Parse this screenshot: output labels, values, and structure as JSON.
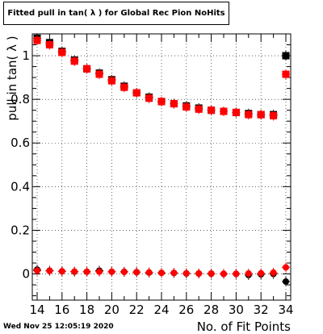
{
  "header": {
    "title": "Fitted pull in tan( λ ) for Global Rec Pion NoHits"
  },
  "footer": {
    "timestamp": "Wed Nov 25 12:05:19 2020"
  },
  "chart_data": {
    "type": "scatter",
    "title": "Fitted pull in tan( λ ) for Global Rec Pion NoHits",
    "xlabel": "No. of Fit Points",
    "ylabel": "pull in tan( λ )",
    "xlim": [
      14,
      34
    ],
    "ylim": [
      -0.12,
      1.1
    ],
    "xticks": [
      14,
      16,
      18,
      20,
      22,
      24,
      26,
      28,
      30,
      32,
      34
    ],
    "xtick_labels": [
      "14",
      "16",
      "18",
      "20",
      "22",
      "24",
      "26",
      "28",
      "30",
      "32",
      "34"
    ],
    "yticks": [
      0,
      0.2,
      0.4,
      0.6,
      0.8,
      1
    ],
    "ytick_labels": [
      "0",
      "0.2",
      "0.4",
      "0.6",
      "0.8",
      "1"
    ],
    "grid": true,
    "series": [
      {
        "marker": "square",
        "color": "#000000",
        "x": [
          14,
          15,
          16,
          17,
          18,
          19,
          20,
          21,
          22,
          23,
          24,
          25,
          26,
          27,
          28,
          29,
          30,
          31,
          32,
          33,
          34
        ],
        "y": [
          1.08,
          1.06,
          1.02,
          0.98,
          0.94,
          0.92,
          0.89,
          0.86,
          0.83,
          0.81,
          0.79,
          0.78,
          0.77,
          0.76,
          0.75,
          0.745,
          0.74,
          0.735,
          0.73,
          0.73,
          1.0
        ]
      },
      {
        "marker": "square",
        "color": "#ff0000",
        "x": [
          14,
          15,
          16,
          17,
          18,
          19,
          20,
          21,
          22,
          23,
          24,
          25,
          26,
          27,
          28,
          29,
          30,
          31,
          32,
          33,
          34
        ],
        "y": [
          1.07,
          1.05,
          1.015,
          0.975,
          0.94,
          0.915,
          0.885,
          0.855,
          0.83,
          0.805,
          0.79,
          0.78,
          0.765,
          0.755,
          0.75,
          0.745,
          0.74,
          0.73,
          0.73,
          0.725,
          0.915
        ]
      },
      {
        "marker": "circle",
        "color": "#000000",
        "x": [
          14,
          15,
          16,
          17,
          18,
          19,
          20,
          21,
          22,
          23,
          24,
          25,
          26,
          27,
          28,
          29,
          30,
          31,
          32,
          33,
          34
        ],
        "y": [
          0.02,
          0.015,
          0.012,
          0.01,
          0.01,
          0.015,
          0.01,
          0.01,
          0.008,
          0.006,
          0.005,
          0.004,
          0.002,
          0.002,
          0.001,
          0.0,
          0.0,
          -0.005,
          -0.002,
          0.0,
          -0.035
        ]
      },
      {
        "marker": "circle",
        "color": "#ff0000",
        "x": [
          14,
          15,
          16,
          17,
          18,
          19,
          20,
          21,
          22,
          23,
          24,
          25,
          26,
          27,
          28,
          29,
          30,
          31,
          32,
          33,
          34
        ],
        "y": [
          0.015,
          0.014,
          0.012,
          0.011,
          0.01,
          0.01,
          0.01,
          0.009,
          0.008,
          0.007,
          0.005,
          0.005,
          0.003,
          0.002,
          0.002,
          0.001,
          0.001,
          0.002,
          0.003,
          0.006,
          0.03
        ]
      }
    ]
  }
}
